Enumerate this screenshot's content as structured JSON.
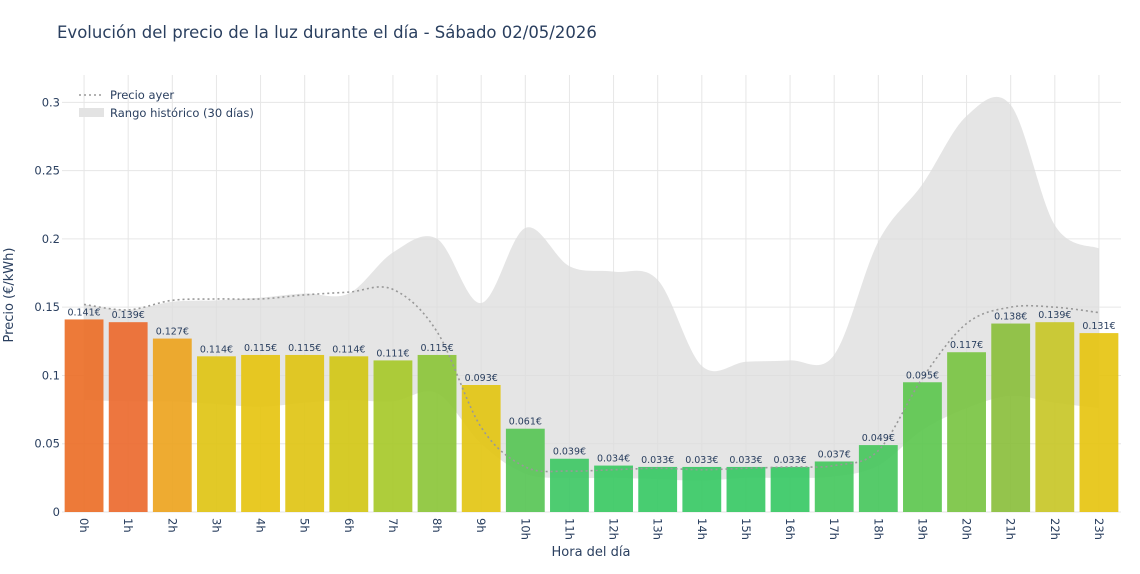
{
  "chart_data": {
    "type": "bar",
    "title": "Evolución del precio de la luz durante el día - Sábado 02/05/2026",
    "xlabel": "Hora del día",
    "ylabel": "Precio (€/kWh)",
    "ylim": [
      0,
      0.32
    ],
    "yticks": [
      0,
      0.05,
      0.1,
      0.15,
      0.2,
      0.25,
      0.3
    ],
    "ytick_labels": [
      "0",
      "0.05",
      "0.1",
      "0.15",
      "0.2",
      "0.25",
      "0.3"
    ],
    "categories": [
      "0h",
      "1h",
      "2h",
      "3h",
      "4h",
      "5h",
      "6h",
      "7h",
      "8h",
      "9h",
      "10h",
      "11h",
      "12h",
      "13h",
      "14h",
      "15h",
      "16h",
      "17h",
      "18h",
      "19h",
      "20h",
      "21h",
      "22h",
      "23h"
    ],
    "values": [
      0.141,
      0.139,
      0.127,
      0.114,
      0.115,
      0.115,
      0.114,
      0.111,
      0.115,
      0.093,
      0.061,
      0.039,
      0.034,
      0.033,
      0.033,
      0.033,
      0.033,
      0.037,
      0.049,
      0.095,
      0.117,
      0.138,
      0.139,
      0.131
    ],
    "value_labels": [
      "0.141€",
      "0.139€",
      "0.127€",
      "0.114€",
      "0.115€",
      "0.115€",
      "0.114€",
      "0.111€",
      "0.115€",
      "0.093€",
      "0.061€",
      "0.039€",
      "0.034€",
      "0.033€",
      "0.033€",
      "0.033€",
      "0.033€",
      "0.037€",
      "0.049€",
      "0.095€",
      "0.117€",
      "0.138€",
      "0.139€",
      "0.131€"
    ],
    "bar_colors": [
      "#ec6f28",
      "#eb6a2f",
      "#eda41f",
      "#e0c415",
      "#e6c411",
      "#e0c415",
      "#d2c716",
      "#a7c92a",
      "#8cc53a",
      "#e3c614",
      "#58c556",
      "#3fc865",
      "#3bc963",
      "#38c965",
      "#38c965",
      "#38c965",
      "#38c965",
      "#45c85e",
      "#48c75d",
      "#5dc74f",
      "#79c443",
      "#8bbf3d",
      "#c8c728",
      "#e6c411"
    ],
    "series": [
      {
        "name": "Precio ayer",
        "style": "dotted",
        "color": "#999999",
        "values": [
          0.152,
          0.148,
          0.155,
          0.156,
          0.156,
          0.159,
          0.161,
          0.163,
          0.132,
          0.062,
          0.033,
          0.03,
          0.031,
          0.032,
          0.031,
          0.032,
          0.033,
          0.034,
          0.045,
          0.098,
          0.138,
          0.15,
          0.15,
          0.146
        ]
      },
      {
        "name": "Rango histórico (30 días)",
        "style": "band",
        "color": "#dcdcdc",
        "upper": [
          0.152,
          0.148,
          0.154,
          0.155,
          0.157,
          0.16,
          0.16,
          0.19,
          0.2,
          0.153,
          0.208,
          0.18,
          0.176,
          0.17,
          0.107,
          0.11,
          0.111,
          0.115,
          0.198,
          0.24,
          0.29,
          0.298,
          0.21,
          0.193
        ],
        "lower": [
          0.082,
          0.081,
          0.081,
          0.079,
          0.077,
          0.08,
          0.082,
          0.081,
          0.087,
          0.05,
          0.028,
          0.025,
          0.025,
          0.024,
          0.023,
          0.025,
          0.025,
          0.026,
          0.034,
          0.06,
          0.076,
          0.085,
          0.08,
          0.076
        ]
      }
    ],
    "legend_position": "top-left",
    "grid": true
  }
}
